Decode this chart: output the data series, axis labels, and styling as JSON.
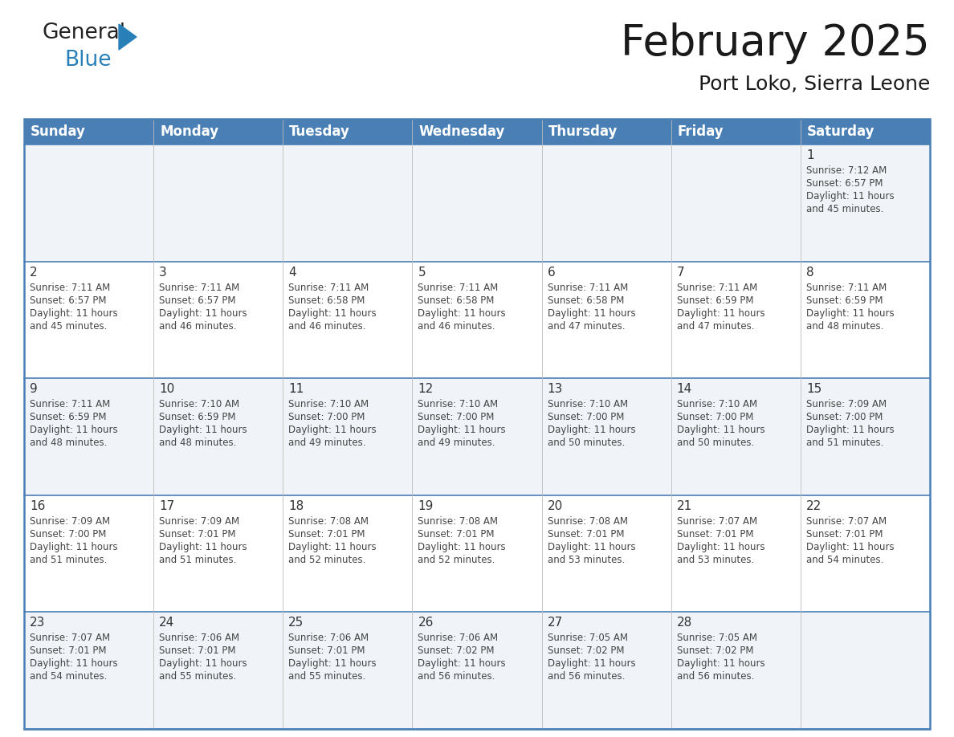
{
  "title": "February 2025",
  "subtitle": "Port Loko, Sierra Leone",
  "header_bg": "#4A7FB5",
  "header_text_color": "#FFFFFF",
  "days_of_week": [
    "Sunday",
    "Monday",
    "Tuesday",
    "Wednesday",
    "Thursday",
    "Friday",
    "Saturday"
  ],
  "row_bg_odd": "#F0F4F8",
  "row_bg_even": "#FFFFFF",
  "cell_border_color": "#4A7FB5",
  "text_color": "#444444",
  "day_number_color": "#333333",
  "calendar": [
    [
      {
        "day": null,
        "sunrise": null,
        "sunset": null,
        "daylight": null
      },
      {
        "day": null,
        "sunrise": null,
        "sunset": null,
        "daylight": null
      },
      {
        "day": null,
        "sunrise": null,
        "sunset": null,
        "daylight": null
      },
      {
        "day": null,
        "sunrise": null,
        "sunset": null,
        "daylight": null
      },
      {
        "day": null,
        "sunrise": null,
        "sunset": null,
        "daylight": null
      },
      {
        "day": null,
        "sunrise": null,
        "sunset": null,
        "daylight": null
      },
      {
        "day": 1,
        "sunrise": "7:12 AM",
        "sunset": "6:57 PM",
        "daylight": "11 hours and 45 minutes."
      }
    ],
    [
      {
        "day": 2,
        "sunrise": "7:11 AM",
        "sunset": "6:57 PM",
        "daylight": "11 hours and 45 minutes."
      },
      {
        "day": 3,
        "sunrise": "7:11 AM",
        "sunset": "6:57 PM",
        "daylight": "11 hours and 46 minutes."
      },
      {
        "day": 4,
        "sunrise": "7:11 AM",
        "sunset": "6:58 PM",
        "daylight": "11 hours and 46 minutes."
      },
      {
        "day": 5,
        "sunrise": "7:11 AM",
        "sunset": "6:58 PM",
        "daylight": "11 hours and 46 minutes."
      },
      {
        "day": 6,
        "sunrise": "7:11 AM",
        "sunset": "6:58 PM",
        "daylight": "11 hours and 47 minutes."
      },
      {
        "day": 7,
        "sunrise": "7:11 AM",
        "sunset": "6:59 PM",
        "daylight": "11 hours and 47 minutes."
      },
      {
        "day": 8,
        "sunrise": "7:11 AM",
        "sunset": "6:59 PM",
        "daylight": "11 hours and 48 minutes."
      }
    ],
    [
      {
        "day": 9,
        "sunrise": "7:11 AM",
        "sunset": "6:59 PM",
        "daylight": "11 hours and 48 minutes."
      },
      {
        "day": 10,
        "sunrise": "7:10 AM",
        "sunset": "6:59 PM",
        "daylight": "11 hours and 48 minutes."
      },
      {
        "day": 11,
        "sunrise": "7:10 AM",
        "sunset": "7:00 PM",
        "daylight": "11 hours and 49 minutes."
      },
      {
        "day": 12,
        "sunrise": "7:10 AM",
        "sunset": "7:00 PM",
        "daylight": "11 hours and 49 minutes."
      },
      {
        "day": 13,
        "sunrise": "7:10 AM",
        "sunset": "7:00 PM",
        "daylight": "11 hours and 50 minutes."
      },
      {
        "day": 14,
        "sunrise": "7:10 AM",
        "sunset": "7:00 PM",
        "daylight": "11 hours and 50 minutes."
      },
      {
        "day": 15,
        "sunrise": "7:09 AM",
        "sunset": "7:00 PM",
        "daylight": "11 hours and 51 minutes."
      }
    ],
    [
      {
        "day": 16,
        "sunrise": "7:09 AM",
        "sunset": "7:00 PM",
        "daylight": "11 hours and 51 minutes."
      },
      {
        "day": 17,
        "sunrise": "7:09 AM",
        "sunset": "7:01 PM",
        "daylight": "11 hours and 51 minutes."
      },
      {
        "day": 18,
        "sunrise": "7:08 AM",
        "sunset": "7:01 PM",
        "daylight": "11 hours and 52 minutes."
      },
      {
        "day": 19,
        "sunrise": "7:08 AM",
        "sunset": "7:01 PM",
        "daylight": "11 hours and 52 minutes."
      },
      {
        "day": 20,
        "sunrise": "7:08 AM",
        "sunset": "7:01 PM",
        "daylight": "11 hours and 53 minutes."
      },
      {
        "day": 21,
        "sunrise": "7:07 AM",
        "sunset": "7:01 PM",
        "daylight": "11 hours and 53 minutes."
      },
      {
        "day": 22,
        "sunrise": "7:07 AM",
        "sunset": "7:01 PM",
        "daylight": "11 hours and 54 minutes."
      }
    ],
    [
      {
        "day": 23,
        "sunrise": "7:07 AM",
        "sunset": "7:01 PM",
        "daylight": "11 hours and 54 minutes."
      },
      {
        "day": 24,
        "sunrise": "7:06 AM",
        "sunset": "7:01 PM",
        "daylight": "11 hours and 55 minutes."
      },
      {
        "day": 25,
        "sunrise": "7:06 AM",
        "sunset": "7:01 PM",
        "daylight": "11 hours and 55 minutes."
      },
      {
        "day": 26,
        "sunrise": "7:06 AM",
        "sunset": "7:02 PM",
        "daylight": "11 hours and 56 minutes."
      },
      {
        "day": 27,
        "sunrise": "7:05 AM",
        "sunset": "7:02 PM",
        "daylight": "11 hours and 56 minutes."
      },
      {
        "day": 28,
        "sunrise": "7:05 AM",
        "sunset": "7:02 PM",
        "daylight": "11 hours and 56 minutes."
      },
      {
        "day": null,
        "sunrise": null,
        "sunset": null,
        "daylight": null
      }
    ]
  ],
  "logo_general_color": "#222222",
  "logo_blue_color": "#2980B9",
  "logo_triangle_color": "#2980B9",
  "title_fontsize": 38,
  "subtitle_fontsize": 18,
  "header_fontsize": 12,
  "day_number_fontsize": 11,
  "cell_text_fontsize": 8.5
}
